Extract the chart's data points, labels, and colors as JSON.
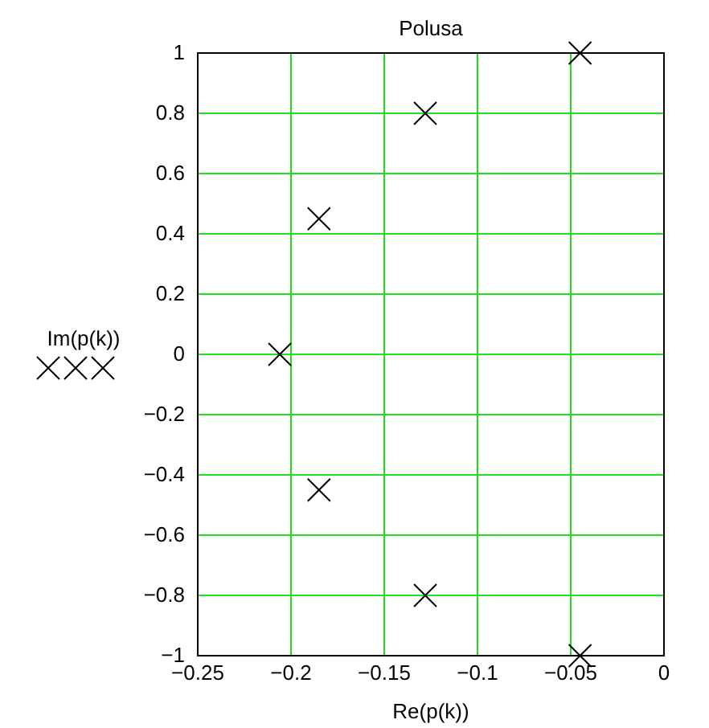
{
  "chart_data": {
    "type": "scatter",
    "title": "Polusa",
    "xlabel": "Re(p(k))",
    "ylabel": "Im(p(k))",
    "x": [
      -0.206,
      -0.185,
      -0.185,
      -0.128,
      -0.128,
      -0.045,
      -0.045
    ],
    "series": [
      {
        "color": "#000000",
        "values": [
          0,
          0.45,
          -0.45,
          0.8,
          -0.8,
          1,
          -1
        ]
      }
    ],
    "marker": "cross",
    "grid": true,
    "xlim": [
      -0.25,
      0
    ],
    "xticks": [
      -0.25,
      -0.2,
      -0.15,
      -0.1,
      -0.05,
      0
    ],
    "ylim": [
      -1,
      1
    ],
    "yticks": [
      -1,
      -0.8,
      -0.6,
      -0.4,
      -0.2,
      0,
      0.2,
      0.4,
      0.6,
      0.8,
      1
    ]
  }
}
